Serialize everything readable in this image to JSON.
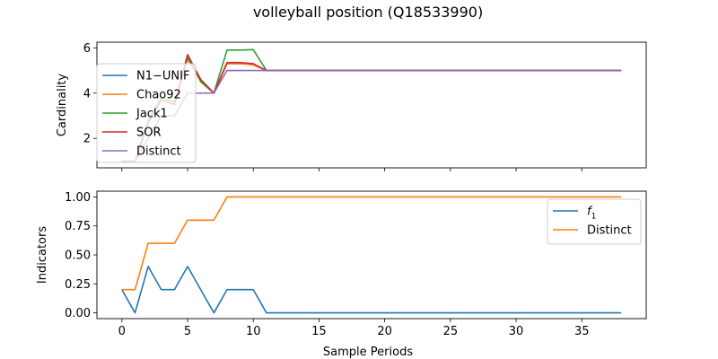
{
  "title": "volleyball position (Q18533990)",
  "xlabel": "Sample Periods",
  "chart_data": [
    {
      "type": "line",
      "ylabel": "Cardinality",
      "xlim": [
        -1.9,
        39.9
      ],
      "ylim": [
        0.7,
        6.25
      ],
      "x_ticks": [
        0,
        5,
        10,
        15,
        20,
        25,
        30,
        35
      ],
      "y_ticks": [
        2,
        4,
        6
      ],
      "x_tick_labels_shown": false,
      "legend_position": "center-left",
      "series": [
        {
          "name": "N1−UNIF",
          "color": "#1f77b4",
          "values": [
            1,
            1,
            2.7,
            3.7,
            3.5,
            5.5,
            4.6,
            4,
            5.3,
            5.3,
            5.25,
            5,
            5,
            5,
            5,
            5,
            5,
            5,
            5,
            5,
            5,
            5,
            5,
            5,
            5,
            5,
            5,
            5,
            5,
            5,
            5,
            5,
            5,
            5,
            5,
            5,
            5,
            5,
            5
          ]
        },
        {
          "name": "Chao92",
          "color": "#ff7f0e",
          "values": [
            1,
            1,
            2.7,
            3.7,
            3.5,
            5.5,
            4.6,
            4,
            5.3,
            5.3,
            5.25,
            5,
            5,
            5,
            5,
            5,
            5,
            5,
            5,
            5,
            5,
            5,
            5,
            5,
            5,
            5,
            5,
            5,
            5,
            5,
            5,
            5,
            5,
            5,
            5,
            5,
            5,
            5,
            5
          ]
        },
        {
          "name": "Jack1",
          "color": "#2ca02c",
          "values": [
            1,
            1,
            2.8,
            3.8,
            3.6,
            5.6,
            4.5,
            4,
            5.9,
            5.9,
            5.92,
            5,
            5,
            5,
            5,
            5,
            5,
            5,
            5,
            5,
            5,
            5,
            5,
            5,
            5,
            5,
            5,
            5,
            5,
            5,
            5,
            5,
            5,
            5,
            5,
            5,
            5,
            5,
            5
          ]
        },
        {
          "name": "SOR",
          "color": "#d62728",
          "values": [
            1,
            1,
            2.7,
            3.7,
            3.5,
            5.7,
            4.6,
            4,
            5.35,
            5.35,
            5.3,
            5,
            5,
            5,
            5,
            5,
            5,
            5,
            5,
            5,
            5,
            5,
            5,
            5,
            5,
            5,
            5,
            5,
            5,
            5,
            5,
            5,
            5,
            5,
            5,
            5,
            5,
            5,
            5
          ]
        },
        {
          "name": "Distinct",
          "color": "#9467bd",
          "values": [
            1,
            1,
            2,
            3,
            3,
            4,
            4,
            4,
            5,
            5,
            5,
            5,
            5,
            5,
            5,
            5,
            5,
            5,
            5,
            5,
            5,
            5,
            5,
            5,
            5,
            5,
            5,
            5,
            5,
            5,
            5,
            5,
            5,
            5,
            5,
            5,
            5,
            5,
            5
          ]
        }
      ]
    },
    {
      "type": "line",
      "ylabel": "Indicators",
      "xlim": [
        -1.9,
        39.9
      ],
      "ylim": [
        -0.05,
        1.05
      ],
      "x_ticks": [
        0,
        5,
        10,
        15,
        20,
        25,
        30,
        35
      ],
      "y_ticks": [
        0.0,
        0.25,
        0.5,
        0.75,
        1.0
      ],
      "y_tick_labels": [
        "0.00",
        "0.25",
        "0.50",
        "0.75",
        "1.00"
      ],
      "x_tick_labels": [
        "0",
        "5",
        "10",
        "15",
        "20",
        "25",
        "30",
        "35"
      ],
      "legend_position": "upper-right",
      "series": [
        {
          "name": "f1",
          "color": "#1f77b4",
          "values": [
            0.2,
            0,
            0.4,
            0.2,
            0.2,
            0.4,
            0.2,
            0,
            0.2,
            0.2,
            0.2,
            0,
            0,
            0,
            0,
            0,
            0,
            0,
            0,
            0,
            0,
            0,
            0,
            0,
            0,
            0,
            0,
            0,
            0,
            0,
            0,
            0,
            0,
            0,
            0,
            0,
            0,
            0,
            0
          ]
        },
        {
          "name": "Distinct",
          "color": "#ff7f0e",
          "values": [
            0.2,
            0.2,
            0.6,
            0.6,
            0.6,
            0.8,
            0.8,
            0.8,
            1,
            1,
            1,
            1,
            1,
            1,
            1,
            1,
            1,
            1,
            1,
            1,
            1,
            1,
            1,
            1,
            1,
            1,
            1,
            1,
            1,
            1,
            1,
            1,
            1,
            1,
            1,
            1,
            1,
            1,
            1
          ]
        }
      ]
    }
  ]
}
